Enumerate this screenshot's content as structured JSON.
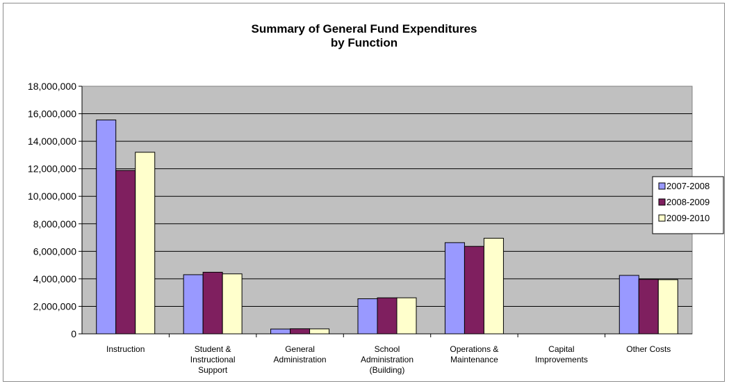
{
  "chart_data": {
    "type": "bar",
    "title_lines": [
      "Summary of General Fund Expenditures",
      "by Function"
    ],
    "xlabel": "",
    "ylabel": "",
    "ylim": [
      0,
      18000000
    ],
    "y_ticks": [
      0,
      2000000,
      4000000,
      6000000,
      8000000,
      10000000,
      12000000,
      14000000,
      16000000,
      18000000
    ],
    "y_tick_labels": [
      "0",
      "2,000,000",
      "4,000,000",
      "6,000,000",
      "8,000,000",
      "10,000,000",
      "12,000,000",
      "14,000,000",
      "16,000,000",
      "18,000,000"
    ],
    "grid": true,
    "legend_position": "right",
    "categories": [
      [
        "Instruction"
      ],
      [
        "Student &",
        "Instructional",
        "Support"
      ],
      [
        "General",
        "Administration"
      ],
      [
        "School",
        "Administration",
        "(Building)"
      ],
      [
        "Operations &",
        "Maintenance"
      ],
      [
        "Capital",
        "Improvements"
      ],
      [
        "Other Costs"
      ]
    ],
    "series": [
      {
        "name": "2007-2008",
        "color": "#9999ff",
        "values": [
          15550000,
          4300000,
          350000,
          2550000,
          6630000,
          0,
          4250000
        ]
      },
      {
        "name": "2008-2009",
        "color": "#7f1f5f",
        "values": [
          11880000,
          4480000,
          370000,
          2620000,
          6360000,
          0,
          3960000
        ]
      },
      {
        "name": "2009-2010",
        "color": "#ffffcc",
        "values": [
          13200000,
          4360000,
          360000,
          2620000,
          6950000,
          0,
          3940000
        ]
      }
    ],
    "plot_background": "#c0c0c0"
  }
}
